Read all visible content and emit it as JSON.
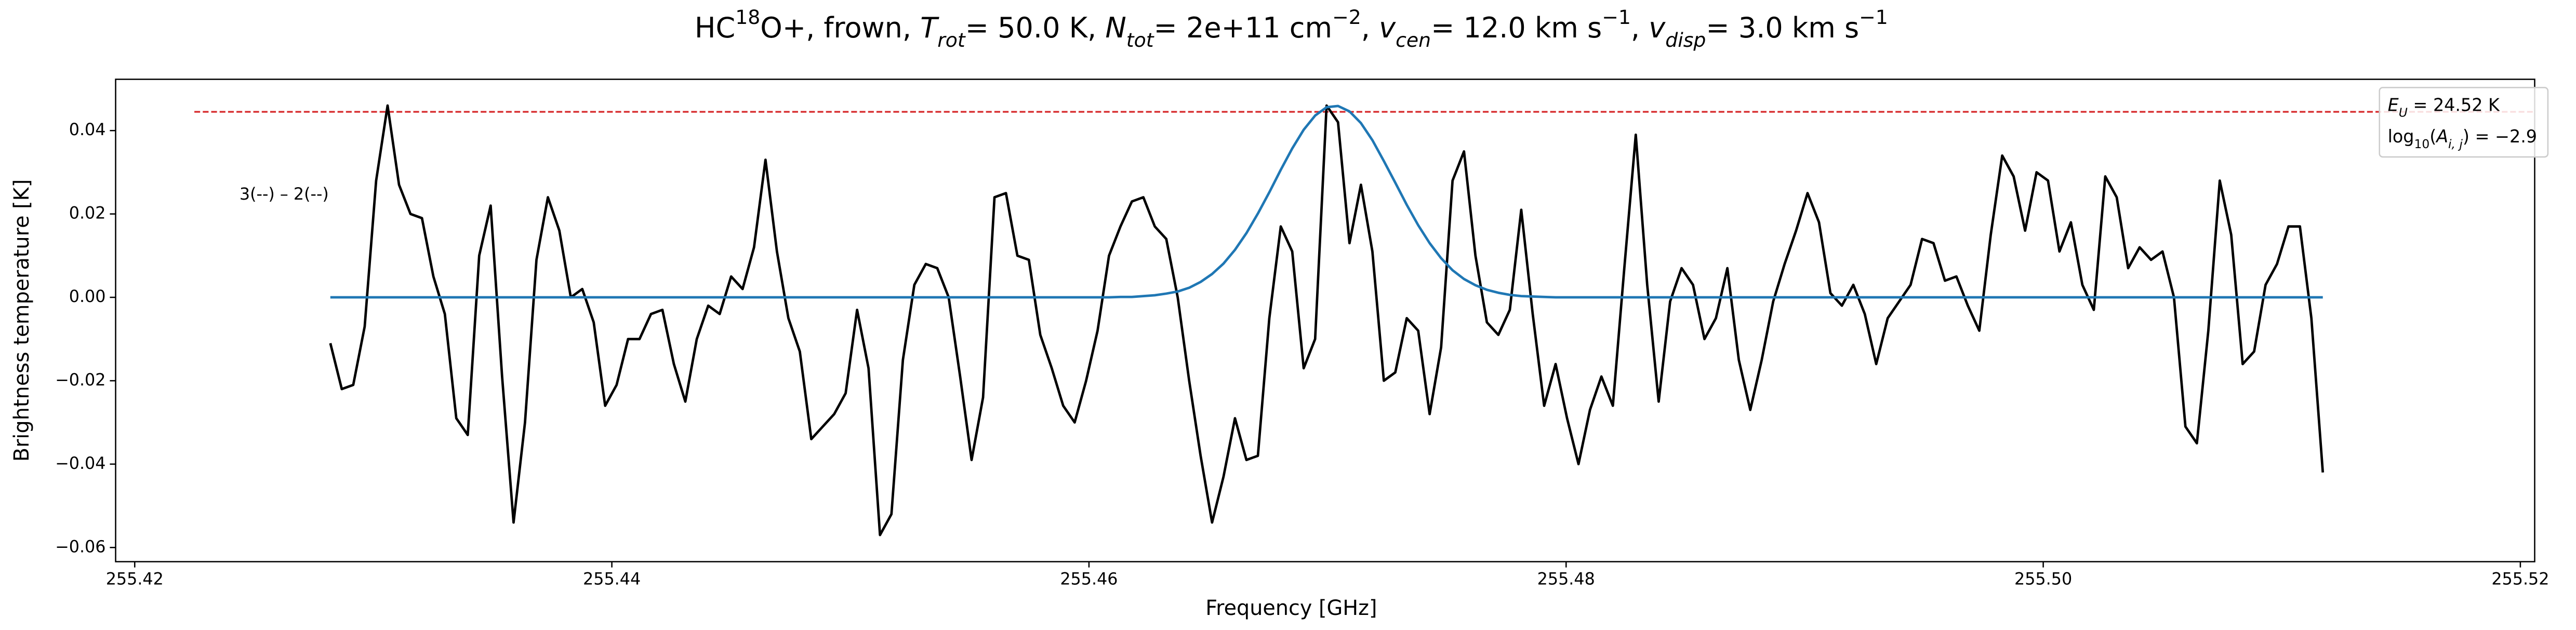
{
  "chart_data": {
    "type": "line",
    "title_parts": [
      {
        "text": "HC"
      },
      {
        "text": "18",
        "style": "sup"
      },
      {
        "text": "O+, frown, "
      },
      {
        "text": "T",
        "style": "italic"
      },
      {
        "text": "rot",
        "style": "sub-italic"
      },
      {
        "text": "= 50.0 K, "
      },
      {
        "text": "N",
        "style": "italic"
      },
      {
        "text": "tot",
        "style": "sub-italic"
      },
      {
        "text": "= 2e+11 cm"
      },
      {
        "text": "−2",
        "style": "sup"
      },
      {
        "text": ", "
      },
      {
        "text": "v",
        "style": "italic"
      },
      {
        "text": "cen",
        "style": "sub-italic"
      },
      {
        "text": "= 12.0 km s"
      },
      {
        "text": "−1",
        "style": "sup"
      },
      {
        "text": ", "
      },
      {
        "text": "v",
        "style": "italic"
      },
      {
        "text": "disp",
        "style": "sub-italic"
      },
      {
        "text": "= 3.0 km s"
      },
      {
        "text": "−1",
        "style": "sup"
      }
    ],
    "xlabel": "Frequency [GHz]",
    "ylabel": "Brightness temperature [K]",
    "annotation": "3(--) – 2(--)",
    "info_box": [
      [
        {
          "text": "E",
          "style": "italic"
        },
        {
          "text": "U",
          "style": "sub-italic"
        },
        {
          "text": " = 24.52 K"
        }
      ],
      [
        {
          "text": "log"
        },
        {
          "text": "10",
          "style": "sub"
        },
        {
          "text": "("
        },
        {
          "text": "A",
          "style": "italic"
        },
        {
          "text": "i, j",
          "style": "sub-italic"
        },
        {
          "text": ") = −2.9"
        }
      ]
    ],
    "xlim": [
      255.4192,
      255.5206
    ],
    "ylim": [
      -0.0634,
      0.0523
    ],
    "xticks": [
      255.42,
      {
        "value": 255.44,
        "label": "255.44"
      },
      {
        "value": 255.46,
        "label": "255.46"
      },
      {
        "value": 255.48,
        "label": "255.48"
      },
      {
        "value": 255.5,
        "label": "255.50"
      },
      255.52
    ],
    "yticks": [
      {
        "value": -0.06,
        "label": "−0.06"
      },
      {
        "value": -0.04,
        "label": "−0.04"
      },
      {
        "value": -0.02,
        "label": "−0.02"
      },
      {
        "value": 0,
        "label": "0.00"
      },
      {
        "value": 0.02,
        "label": "0.02"
      },
      {
        "value": 0.04,
        "label": "0.04"
      }
    ],
    "grid": false,
    "reference_line": {
      "value": 0.0445,
      "xmin": 255.4225,
      "color": "#d62728",
      "dashed": true
    },
    "x": [
      255.4282,
      255.42868,
      255.42916,
      255.42964,
      255.43012,
      255.4306,
      255.43108,
      255.43156,
      255.43204,
      255.43252,
      255.433,
      255.43348,
      255.43396,
      255.43444,
      255.43492,
      255.4354,
      255.43588,
      255.43636,
      255.43684,
      255.43732,
      255.4378,
      255.43828,
      255.43876,
      255.43924,
      255.43972,
      255.4402,
      255.44068,
      255.44116,
      255.44164,
      255.44212,
      255.4426,
      255.44308,
      255.44356,
      255.44404,
      255.44452,
      255.445,
      255.44548,
      255.44596,
      255.44644,
      255.44692,
      255.4474,
      255.44788,
      255.44836,
      255.44884,
      255.44932,
      255.4498,
      255.45028,
      255.45076,
      255.45124,
      255.45172,
      255.4522,
      255.45268,
      255.45316,
      255.45364,
      255.45412,
      255.4546,
      255.45508,
      255.45556,
      255.45604,
      255.45652,
      255.457,
      255.45748,
      255.45796,
      255.45844,
      255.45892,
      255.4594,
      255.45988,
      255.46036,
      255.46084,
      255.46132,
      255.4618,
      255.46228,
      255.46276,
      255.46324,
      255.46372,
      255.4642,
      255.46468,
      255.46516,
      255.46564,
      255.46612,
      255.4666,
      255.46708,
      255.46756,
      255.46804,
      255.46852,
      255.469,
      255.46948,
      255.46996,
      255.47044,
      255.47092,
      255.4714,
      255.47188,
      255.47236,
      255.47284,
      255.47332,
      255.4738,
      255.47428,
      255.47476,
      255.47524,
      255.47572,
      255.4762,
      255.47668,
      255.47716,
      255.47764,
      255.47812,
      255.4786,
      255.47908,
      255.47956,
      255.48004,
      255.48052,
      255.481,
      255.48148,
      255.48196,
      255.48244,
      255.48292,
      255.4834,
      255.48388,
      255.48436,
      255.48484,
      255.48532,
      255.4858,
      255.48628,
      255.48676,
      255.48724,
      255.48772,
      255.4882,
      255.48868,
      255.48916,
      255.48964,
      255.49012,
      255.4906,
      255.49108,
      255.49156,
      255.49204,
      255.49252,
      255.493,
      255.49348,
      255.49396,
      255.49444,
      255.49492,
      255.4954,
      255.49588,
      255.49636,
      255.49684,
      255.49732,
      255.4978,
      255.49828,
      255.49876,
      255.49924,
      255.49972,
      255.5002,
      255.50068,
      255.50116,
      255.50164,
      255.50212,
      255.5026,
      255.50308,
      255.50356,
      255.50404,
      255.50452,
      255.505,
      255.50548,
      255.50596,
      255.50644,
      255.50692,
      255.5074,
      255.50788,
      255.50836,
      255.50884,
      255.50932,
      255.5098,
      255.51028,
      255.51076,
      255.51124,
      255.51172
    ],
    "series": [
      {
        "color": "#000000",
        "values": [
          -0.011,
          -0.022,
          -0.021,
          -0.007,
          0.028,
          0.046,
          0.027,
          0.02,
          0.019,
          0.005,
          -0.004,
          -0.029,
          -0.033,
          0.01,
          0.022,
          -0.019,
          -0.054,
          -0.03,
          0.009,
          0.024,
          0.016,
          0,
          0.002,
          -0.006,
          -0.026,
          -0.021,
          -0.01,
          -0.01,
          -0.004,
          -0.003,
          -0.016,
          -0.025,
          -0.01,
          -0.002,
          -0.004,
          0.005,
          0.002,
          0.012,
          0.033,
          0.011,
          -0.005,
          -0.013,
          -0.034,
          -0.031,
          -0.028,
          -0.023,
          -0.003,
          -0.017,
          -0.057,
          -0.052,
          -0.015,
          0.003,
          0.008,
          0.007,
          0,
          -0.019,
          -0.039,
          -0.024,
          0.024,
          0.025,
          0.01,
          0.009,
          -0.009,
          -0.017,
          -0.026,
          -0.03,
          -0.02,
          -0.008,
          0.01,
          0.017,
          0.023,
          0.024,
          0.017,
          0.014,
          0,
          -0.02,
          -0.038,
          -0.054,
          -0.043,
          -0.029,
          -0.039,
          -0.038,
          -0.005,
          0.017,
          0.011,
          -0.017,
          -0.01,
          0.046,
          0.042,
          0.013,
          0.027,
          0.011,
          -0.02,
          -0.018,
          -0.005,
          -0.008,
          -0.028,
          -0.012,
          0.028,
          0.035,
          0.01,
          -0.006,
          -0.009,
          -0.003,
          0.021,
          -0.004,
          -0.026,
          -0.016,
          -0.029,
          -0.04,
          -0.027,
          -0.019,
          -0.026,
          0.007,
          0.039,
          0.003,
          -0.025,
          -0.001,
          0.007,
          0.003,
          -0.01,
          -0.005,
          0.007,
          -0.015,
          -0.027,
          -0.015,
          -0.001,
          0.008,
          0.016,
          0.025,
          0.018,
          0.001,
          -0.002,
          0.003,
          -0.004,
          -0.016,
          -0.005,
          -0.001,
          0.003,
          0.014,
          0.013,
          0.004,
          0.005,
          -0.002,
          -0.008,
          0.015,
          0.034,
          0.029,
          0.016,
          0.03,
          0.028,
          0.011,
          0.018,
          0.003,
          -0.003,
          0.029,
          0.024,
          0.007,
          0.012,
          0.009,
          0.011,
          0,
          -0.031,
          -0.035,
          -0.008,
          0.028,
          0.015,
          -0.016,
          -0.013,
          0.003,
          0.008,
          0.017,
          0.017,
          -0.005,
          -0.042
        ]
      },
      {
        "color": "#1f77b4",
        "values": [
          0,
          0,
          0,
          0,
          0,
          0,
          0,
          0,
          0,
          0,
          0,
          0,
          0,
          0,
          0,
          0,
          0,
          0,
          0,
          0,
          0,
          0,
          0,
          0,
          0,
          0,
          0,
          0,
          0,
          0,
          0,
          0,
          0,
          0,
          0,
          0,
          0,
          0,
          0,
          0,
          0,
          0,
          0,
          0,
          0,
          0,
          0,
          0,
          0,
          0,
          0,
          0,
          0,
          0,
          0,
          0,
          0,
          0,
          0,
          0,
          0,
          0,
          0,
          0,
          0,
          0,
          0,
          0,
          0,
          0.0001,
          0.0001,
          0.0003,
          0.0005,
          0.0009,
          0.0014,
          0.0023,
          0.0037,
          0.0056,
          0.0081,
          0.0114,
          0.0154,
          0.0201,
          0.0252,
          0.0306,
          0.0357,
          0.0402,
          0.0436,
          0.0456,
          0.0459,
          0.0446,
          0.0418,
          0.0377,
          0.0327,
          0.0275,
          0.0222,
          0.0173,
          0.013,
          0.0094,
          0.0065,
          0.0044,
          0.0029,
          0.0018,
          0.0011,
          0.0006,
          0.0003,
          0.0002,
          0.0001,
          0,
          0,
          0,
          0,
          0,
          0,
          0,
          0,
          0,
          0,
          0,
          0,
          0,
          0,
          0,
          0,
          0,
          0,
          0,
          0,
          0,
          0,
          0,
          0,
          0,
          0,
          0,
          0,
          0,
          0,
          0,
          0,
          0,
          0,
          0,
          0,
          0,
          0,
          0,
          0,
          0,
          0,
          0,
          0,
          0,
          0,
          0,
          0,
          0,
          0,
          0,
          0,
          0,
          0,
          0,
          0,
          0,
          0,
          0,
          0,
          0,
          0,
          0,
          0,
          0,
          0,
          0,
          0
        ]
      }
    ]
  }
}
